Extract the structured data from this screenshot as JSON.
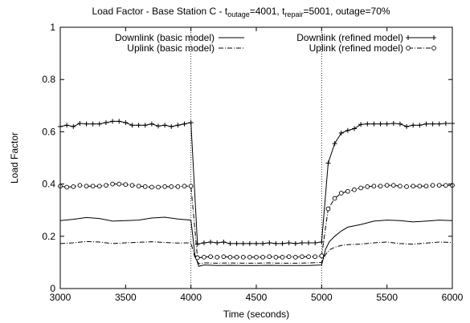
{
  "chart_data": {
    "type": "line",
    "title": {
      "prefix": "Load Factor - Base Station C - t",
      "sub1": "outage",
      "mid": "=4001, t",
      "sub2": "repair",
      "suffix": "=5001, outage=70%"
    },
    "xlabel": "Time (seconds)",
    "ylabel": "Load Factor",
    "xlim": [
      3000,
      6000
    ],
    "ylim": [
      0,
      1
    ],
    "xticks": [
      3000,
      3500,
      4000,
      4500,
      5000,
      5500,
      6000
    ],
    "yticks": [
      0,
      0.2,
      0.4,
      0.6,
      0.8,
      1
    ],
    "ytick_labels": [
      "0",
      "0.2",
      "0.4",
      "0.6",
      "0.8",
      "1"
    ],
    "vlines": [
      4000,
      5000
    ],
    "grid": false,
    "legend_position": "top",
    "series": [
      {
        "name": "Downlink (basic model)",
        "style": "solid",
        "marker": "none",
        "x": [
          3000,
          3100,
          3200,
          3300,
          3400,
          3500,
          3600,
          3700,
          3800,
          3900,
          4000,
          4030,
          4060,
          4100,
          4200,
          4300,
          4400,
          4500,
          4600,
          4700,
          4800,
          4900,
          5000,
          5030,
          5060,
          5100,
          5150,
          5200,
          5300,
          5400,
          5500,
          5600,
          5700,
          5800,
          5900,
          6000
        ],
        "y": [
          0.26,
          0.265,
          0.272,
          0.268,
          0.258,
          0.26,
          0.262,
          0.27,
          0.273,
          0.266,
          0.262,
          0.13,
          0.085,
          0.09,
          0.088,
          0.089,
          0.088,
          0.088,
          0.089,
          0.088,
          0.088,
          0.088,
          0.09,
          0.15,
          0.18,
          0.2,
          0.22,
          0.235,
          0.245,
          0.258,
          0.262,
          0.26,
          0.255,
          0.258,
          0.262,
          0.26
        ]
      },
      {
        "name": "Uplink (basic model)",
        "style": "dashdot",
        "marker": "none",
        "x": [
          3000,
          3100,
          3200,
          3300,
          3400,
          3500,
          3600,
          3700,
          3800,
          3900,
          4000,
          4030,
          4060,
          4100,
          4200,
          4300,
          4400,
          4500,
          4600,
          4700,
          4800,
          4900,
          5000,
          5030,
          5060,
          5100,
          5150,
          5200,
          5300,
          5400,
          5500,
          5600,
          5700,
          5800,
          5900,
          6000
        ],
        "y": [
          0.172,
          0.175,
          0.18,
          0.178,
          0.172,
          0.175,
          0.177,
          0.179,
          0.176,
          0.174,
          0.175,
          0.12,
          0.095,
          0.098,
          0.097,
          0.098,
          0.097,
          0.097,
          0.098,
          0.097,
          0.097,
          0.098,
          0.1,
          0.13,
          0.148,
          0.158,
          0.165,
          0.168,
          0.17,
          0.175,
          0.178,
          0.172,
          0.17,
          0.174,
          0.178,
          0.176
        ]
      },
      {
        "name": "Downlink (refined model)",
        "style": "solid",
        "marker": "plus",
        "x": [
          3000,
          3050,
          3100,
          3150,
          3200,
          3250,
          3300,
          3350,
          3400,
          3450,
          3500,
          3550,
          3600,
          3650,
          3700,
          3750,
          3800,
          3850,
          3900,
          3950,
          4000,
          4050,
          4100,
          4150,
          4200,
          4250,
          4300,
          4350,
          4400,
          4450,
          4500,
          4550,
          4600,
          4650,
          4700,
          4750,
          4800,
          4850,
          4900,
          4950,
          5000,
          5050,
          5100,
          5150,
          5200,
          5250,
          5300,
          5350,
          5400,
          5450,
          5500,
          5550,
          5600,
          5650,
          5700,
          5750,
          5800,
          5850,
          5900,
          5950,
          6000
        ],
        "y": [
          0.62,
          0.625,
          0.62,
          0.632,
          0.63,
          0.63,
          0.63,
          0.635,
          0.64,
          0.64,
          0.635,
          0.625,
          0.625,
          0.625,
          0.63,
          0.622,
          0.625,
          0.62,
          0.625,
          0.63,
          0.635,
          0.17,
          0.175,
          0.178,
          0.175,
          0.178,
          0.172,
          0.172,
          0.172,
          0.172,
          0.172,
          0.172,
          0.175,
          0.172,
          0.172,
          0.175,
          0.172,
          0.175,
          0.175,
          0.175,
          0.178,
          0.48,
          0.555,
          0.595,
          0.605,
          0.612,
          0.628,
          0.63,
          0.63,
          0.63,
          0.63,
          0.632,
          0.63,
          0.62,
          0.625,
          0.625,
          0.63,
          0.63,
          0.63,
          0.632,
          0.632
        ]
      },
      {
        "name": "Uplink (refined model)",
        "style": "dashdot",
        "marker": "circle",
        "x": [
          3000,
          3050,
          3100,
          3150,
          3200,
          3250,
          3300,
          3350,
          3400,
          3450,
          3500,
          3550,
          3600,
          3650,
          3700,
          3750,
          3800,
          3850,
          3900,
          3950,
          4000,
          4050,
          4100,
          4150,
          4200,
          4250,
          4300,
          4350,
          4400,
          4450,
          4500,
          4550,
          4600,
          4650,
          4700,
          4750,
          4800,
          4850,
          4900,
          4950,
          5000,
          5050,
          5100,
          5150,
          5200,
          5250,
          5300,
          5350,
          5400,
          5450,
          5500,
          5550,
          5600,
          5650,
          5700,
          5750,
          5800,
          5850,
          5900,
          5950,
          6000
        ],
        "y": [
          0.392,
          0.388,
          0.39,
          0.395,
          0.392,
          0.392,
          0.392,
          0.395,
          0.4,
          0.4,
          0.398,
          0.395,
          0.392,
          0.39,
          0.388,
          0.388,
          0.39,
          0.39,
          0.39,
          0.392,
          0.392,
          0.118,
          0.12,
          0.122,
          0.12,
          0.122,
          0.12,
          0.12,
          0.12,
          0.12,
          0.12,
          0.12,
          0.122,
          0.12,
          0.12,
          0.122,
          0.12,
          0.122,
          0.122,
          0.122,
          0.125,
          0.305,
          0.345,
          0.365,
          0.372,
          0.378,
          0.385,
          0.39,
          0.392,
          0.392,
          0.395,
          0.395,
          0.392,
          0.39,
          0.392,
          0.392,
          0.392,
          0.395,
          0.395,
          0.395,
          0.395
        ]
      }
    ]
  }
}
